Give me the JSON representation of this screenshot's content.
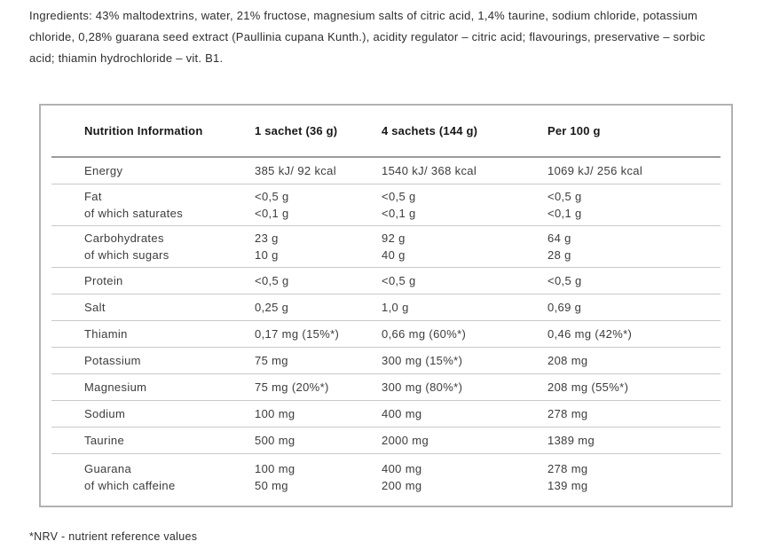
{
  "ingredients": {
    "lines": [
      "Ingredients: 43% maltodextrins, water, 21% fructose, magnesium salts of citric acid, 1,4% taurine, sodium chloride, potassium",
      "chloride, 0,28% guarana seed extract (Paullinia cupana Kunth.), acidity regulator – citric acid; flavourings, preservative – sorbic",
      "acid; thiamin hydrochloride – vit. B1."
    ]
  },
  "table": {
    "headers": [
      "Nutrition Information",
      "1 sachet (36 g)",
      "4 sachets (144 g)",
      "Per 100 g"
    ],
    "rows": [
      {
        "label": "Energy",
        "c1": "385 kJ/ 92 kcal",
        "c2": "1540 kJ/ 368 kcal",
        "c3": "1069 kJ/ 256 kcal"
      },
      {
        "label": "Fat",
        "sub": "of which saturates",
        "c1": "<0,5 g",
        "c1b": "<0,1 g",
        "c2": "<0,5 g",
        "c2b": "<0,1 g",
        "c3": "<0,5 g",
        "c3b": "<0,1 g"
      },
      {
        "label": "Carbohydrates",
        "sub": "of which sugars",
        "c1": "23 g",
        "c1b": "10 g",
        "c2": "92 g",
        "c2b": "40 g",
        "c3": "64 g",
        "c3b": "28 g"
      },
      {
        "label": "Protein",
        "c1": "<0,5 g",
        "c2": "<0,5 g",
        "c3": "<0,5 g"
      },
      {
        "label": "Salt",
        "c1": "0,25 g",
        "c2": "1,0 g",
        "c3": "0,69 g"
      },
      {
        "label": "Thiamin",
        "c1": "0,17 mg (15%*)",
        "c2": "0,66 mg (60%*)",
        "c3": "0,46 mg (42%*)"
      },
      {
        "label": "Potassium",
        "c1": "75 mg",
        "c2": "300 mg (15%*)",
        "c3": "208 mg"
      },
      {
        "label": "Magnesium",
        "c1": "75 mg (20%*)",
        "c2": "300 mg (80%*)",
        "c3": "208 mg (55%*)"
      },
      {
        "label": "Sodium",
        "c1": "100 mg",
        "c2": "400 mg",
        "c3": "278 mg"
      },
      {
        "label": "Taurine",
        "c1": "500 mg",
        "c2": "2000 mg",
        "c3": "1389 mg"
      },
      {
        "label": "Guarana",
        "sub": "of which caffeine",
        "c1": "100 mg",
        "c1b": "50 mg",
        "c2": "400 mg",
        "c2b": "200 mg",
        "c3": "278 mg",
        "c3b": "139 mg"
      }
    ]
  },
  "footnote": "*NRV - nutrient reference values"
}
